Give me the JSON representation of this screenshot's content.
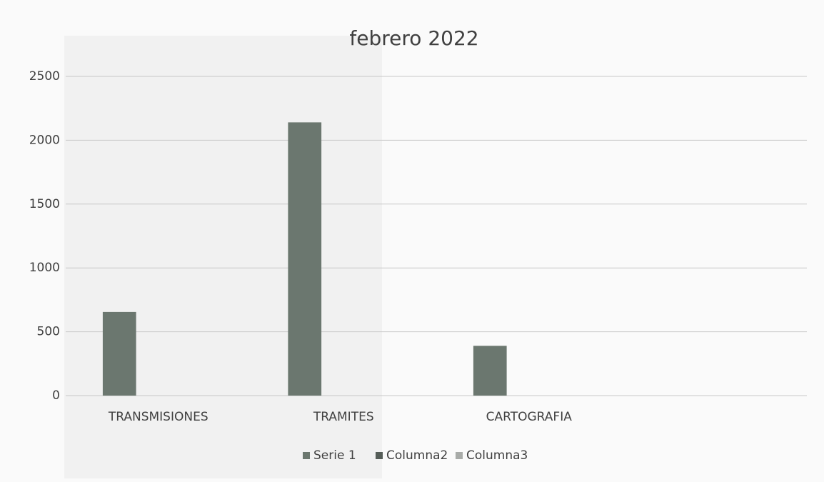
{
  "chart_data": {
    "type": "bar",
    "title": "febrero 2022",
    "categories": [
      "TRANSMISIONES",
      "TRAMITES",
      "CARTOGRAFIA",
      null
    ],
    "series": [
      {
        "name": "Serie 1",
        "color": "#6b776f",
        "values": [
          655,
          2140,
          390,
          null
        ]
      },
      {
        "name": "Columna2",
        "color": "#555d58",
        "values": [
          null,
          null,
          null,
          null
        ]
      },
      {
        "name": "Columna3",
        "color": "#a8aba8",
        "values": [
          null,
          null,
          null,
          null
        ]
      }
    ],
    "ylim": [
      0,
      2500
    ],
    "yticks": [
      0,
      500,
      1000,
      1500,
      2000,
      2500
    ],
    "grid": true,
    "legend": "bottom"
  }
}
